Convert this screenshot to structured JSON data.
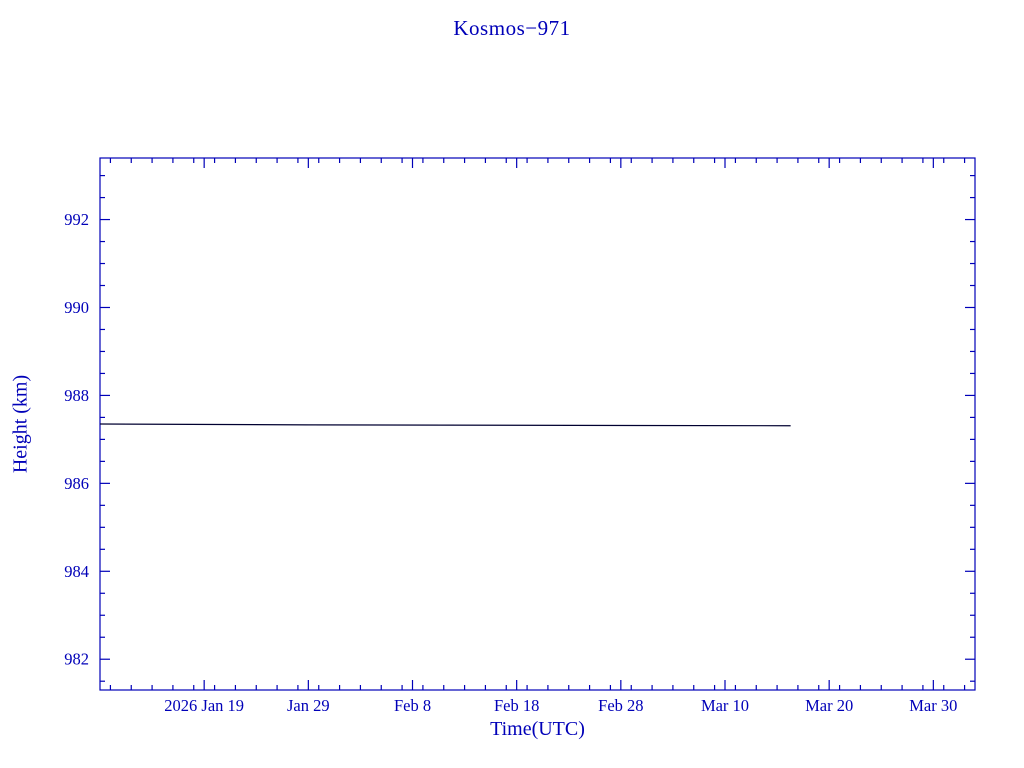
{
  "chart_data": {
    "type": "line",
    "title": "Kosmos−971",
    "xlabel": "Time(UTC)",
    "ylabel": "Height (km)",
    "x_unit": "day of year 2026",
    "xlim": [
      9,
      93
    ],
    "ylim": [
      981.3,
      993.4
    ],
    "x_ticks": [
      {
        "value": 19,
        "label": "2026 Jan 19"
      },
      {
        "value": 29,
        "label": "Jan 29"
      },
      {
        "value": 39,
        "label": "Feb 8"
      },
      {
        "value": 49,
        "label": "Feb 18"
      },
      {
        "value": 59,
        "label": "Feb 28"
      },
      {
        "value": 69,
        "label": "Mar 10"
      },
      {
        "value": 79,
        "label": "Mar 20"
      },
      {
        "value": 89,
        "label": "Mar 30"
      }
    ],
    "y_ticks": [
      982,
      984,
      986,
      988,
      990,
      992
    ],
    "x_minor_step": 2,
    "y_minor_step": 0.5,
    "grid": false,
    "legend": false,
    "series": [
      {
        "name": "height",
        "color": "#000030",
        "points": [
          {
            "x": 9.0,
            "y": 987.35
          },
          {
            "x": 29.0,
            "y": 987.33
          },
          {
            "x": 75.3,
            "y": 987.31
          }
        ]
      }
    ],
    "colors": {
      "axis": "#0000b8",
      "text": "#0000b8",
      "background": "#ffffff"
    }
  }
}
